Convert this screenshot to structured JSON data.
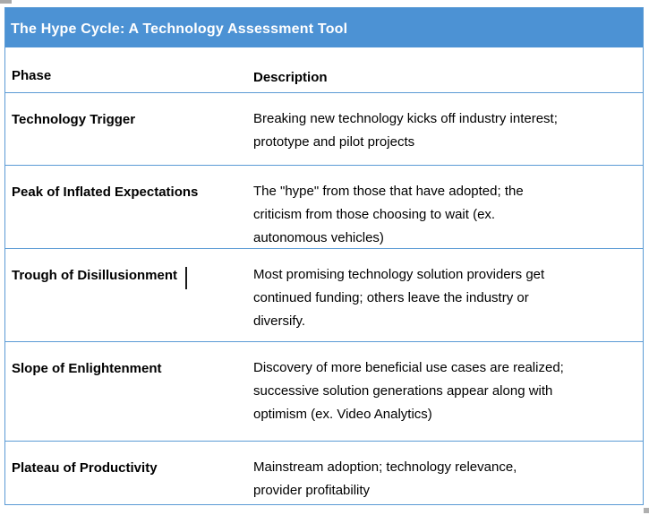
{
  "title": "The Hype Cycle: A Technology Assessment Tool",
  "table": {
    "columns": [
      "Phase",
      "Description"
    ],
    "rows": [
      {
        "phase": "Technology Trigger",
        "description": "Breaking new technology kicks off industry interest;\nprototype and pilot projects"
      },
      {
        "phase": "Peak of Inflated Expectations",
        "description": "The \"hype\" from those that have adopted; the\ncriticism from those choosing to wait (ex.\nautonomous vehicles)"
      },
      {
        "phase": "Trough of Disillusionment",
        "description": "Most promising technology solution providers get\ncontinued funding; others leave the industry or\ndiversify."
      },
      {
        "phase": "Slope of Enlightenment",
        "description": "Discovery of more beneficial use cases are realized;\nsuccessive solution generations appear along with\noptimism (ex. Video Analytics)"
      },
      {
        "phase": "Plateau of Productivity",
        "description": "Mainstream adoption; technology relevance,\nprovider profitability"
      }
    ]
  },
  "colors": {
    "header_background": "#4c92d4",
    "table_border": "#5b9bd5",
    "title_text": "#ffffff",
    "body_text": "#000000"
  }
}
